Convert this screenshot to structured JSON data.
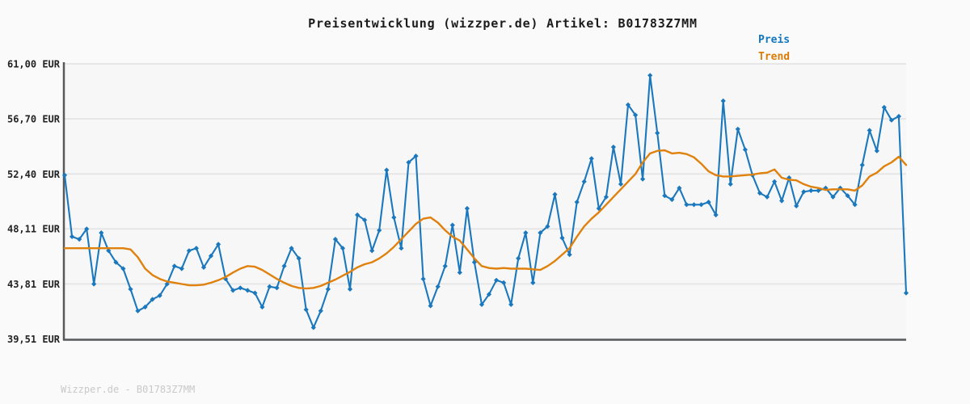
{
  "title": "Preisentwicklung (wizzper.de) Artikel: B01783Z7MM",
  "legend": {
    "preis_label": "Preis",
    "trend_label": "Trend"
  },
  "footer": "Wizzper.de - B01783Z7MM",
  "colors": {
    "price": "#1b78bd",
    "trend": "#e0810e",
    "grid": "#e4e4e4",
    "axis": "#58595b",
    "tick_text": "#222222",
    "plot_bg": "#f7f7f7",
    "page_bg": "#fafafa",
    "footer_text": "#c9c9c9"
  },
  "y_axis": {
    "unit": "EUR",
    "tick_labels": [
      "61,00 EUR",
      "56,70 EUR",
      "52,40 EUR",
      "48,11 EUR",
      "43,81 EUR",
      "39,51 EUR"
    ],
    "tick_values": [
      61.0,
      56.7,
      52.4,
      48.11,
      43.81,
      39.51
    ]
  },
  "chart_data": {
    "type": "line",
    "title": "Preisentwicklung (wizzper.de) Artikel: B01783Z7MM",
    "xlabel": "",
    "ylabel": "EUR",
    "ylim": [
      39.51,
      61.0
    ],
    "y_ticks": [
      61.0,
      56.7,
      52.4,
      48.11,
      43.81,
      39.51
    ],
    "grid": "horizontal",
    "legend_position": "top-right",
    "x_tick_labels_visible": false,
    "series": [
      {
        "name": "Preis",
        "color": "#1b78bd",
        "marker": "diamond",
        "values": [
          52.3,
          47.5,
          47.3,
          48.1,
          43.8,
          47.8,
          46.4,
          45.5,
          45.0,
          43.4,
          41.7,
          42.0,
          42.6,
          42.9,
          43.8,
          45.2,
          45.0,
          46.4,
          46.6,
          45.1,
          46.0,
          46.9,
          44.2,
          43.3,
          43.5,
          43.3,
          43.1,
          42.0,
          43.6,
          43.5,
          45.2,
          46.6,
          45.8,
          41.8,
          40.4,
          41.7,
          43.4,
          47.3,
          46.6,
          43.4,
          49.2,
          48.8,
          46.4,
          48.0,
          52.7,
          49.0,
          46.6,
          53.3,
          53.8,
          44.2,
          42.1,
          43.6,
          45.2,
          48.4,
          44.7,
          49.7,
          45.5,
          42.2,
          43.0,
          44.1,
          43.9,
          42.2,
          45.8,
          47.8,
          43.9,
          47.8,
          48.3,
          50.8,
          47.4,
          46.1,
          50.2,
          51.8,
          53.6,
          49.7,
          50.6,
          54.5,
          51.6,
          57.8,
          57.0,
          52.0,
          60.1,
          55.6,
          50.7,
          50.4,
          51.3,
          50.0,
          50.0,
          50.0,
          50.2,
          49.2,
          58.1,
          51.6,
          55.9,
          54.3,
          52.3,
          50.9,
          50.6,
          51.8,
          50.3,
          52.1,
          49.9,
          51.0,
          51.1,
          51.1,
          51.3,
          50.6,
          51.3,
          50.7,
          50.0,
          53.1,
          55.8,
          54.2,
          57.6,
          56.6,
          56.9,
          43.1
        ]
      },
      {
        "name": "Trend",
        "color": "#e0810e",
        "marker": "none",
        "values": [
          46.6,
          46.6,
          46.6,
          46.6,
          46.6,
          46.6,
          46.6,
          46.6,
          46.6,
          46.5,
          45.9,
          45.0,
          44.5,
          44.2,
          44.0,
          43.9,
          43.8,
          43.7,
          43.7,
          43.75,
          43.9,
          44.1,
          44.35,
          44.7,
          45.0,
          45.2,
          45.15,
          44.9,
          44.55,
          44.2,
          43.9,
          43.65,
          43.5,
          43.45,
          43.5,
          43.65,
          43.9,
          44.15,
          44.45,
          44.75,
          45.1,
          45.35,
          45.5,
          45.8,
          46.2,
          46.7,
          47.3,
          47.9,
          48.5,
          48.9,
          49.0,
          48.6,
          48.0,
          47.5,
          47.2,
          46.5,
          45.8,
          45.2,
          45.05,
          45.0,
          45.05,
          45.0,
          45.0,
          45.0,
          44.95,
          44.9,
          45.2,
          45.6,
          46.1,
          46.6,
          47.5,
          48.3,
          48.9,
          49.4,
          50.0,
          50.6,
          51.2,
          51.8,
          52.4,
          53.3,
          54.0,
          54.2,
          54.25,
          54.0,
          54.05,
          53.95,
          53.7,
          53.2,
          52.6,
          52.3,
          52.2,
          52.2,
          52.25,
          52.3,
          52.35,
          52.45,
          52.5,
          52.75,
          52.1,
          51.95,
          51.9,
          51.6,
          51.4,
          51.3,
          51.15,
          51.2,
          51.2,
          51.2,
          51.1,
          51.5,
          52.2,
          52.5,
          53.0,
          53.3,
          53.75,
          53.1
        ]
      }
    ]
  }
}
